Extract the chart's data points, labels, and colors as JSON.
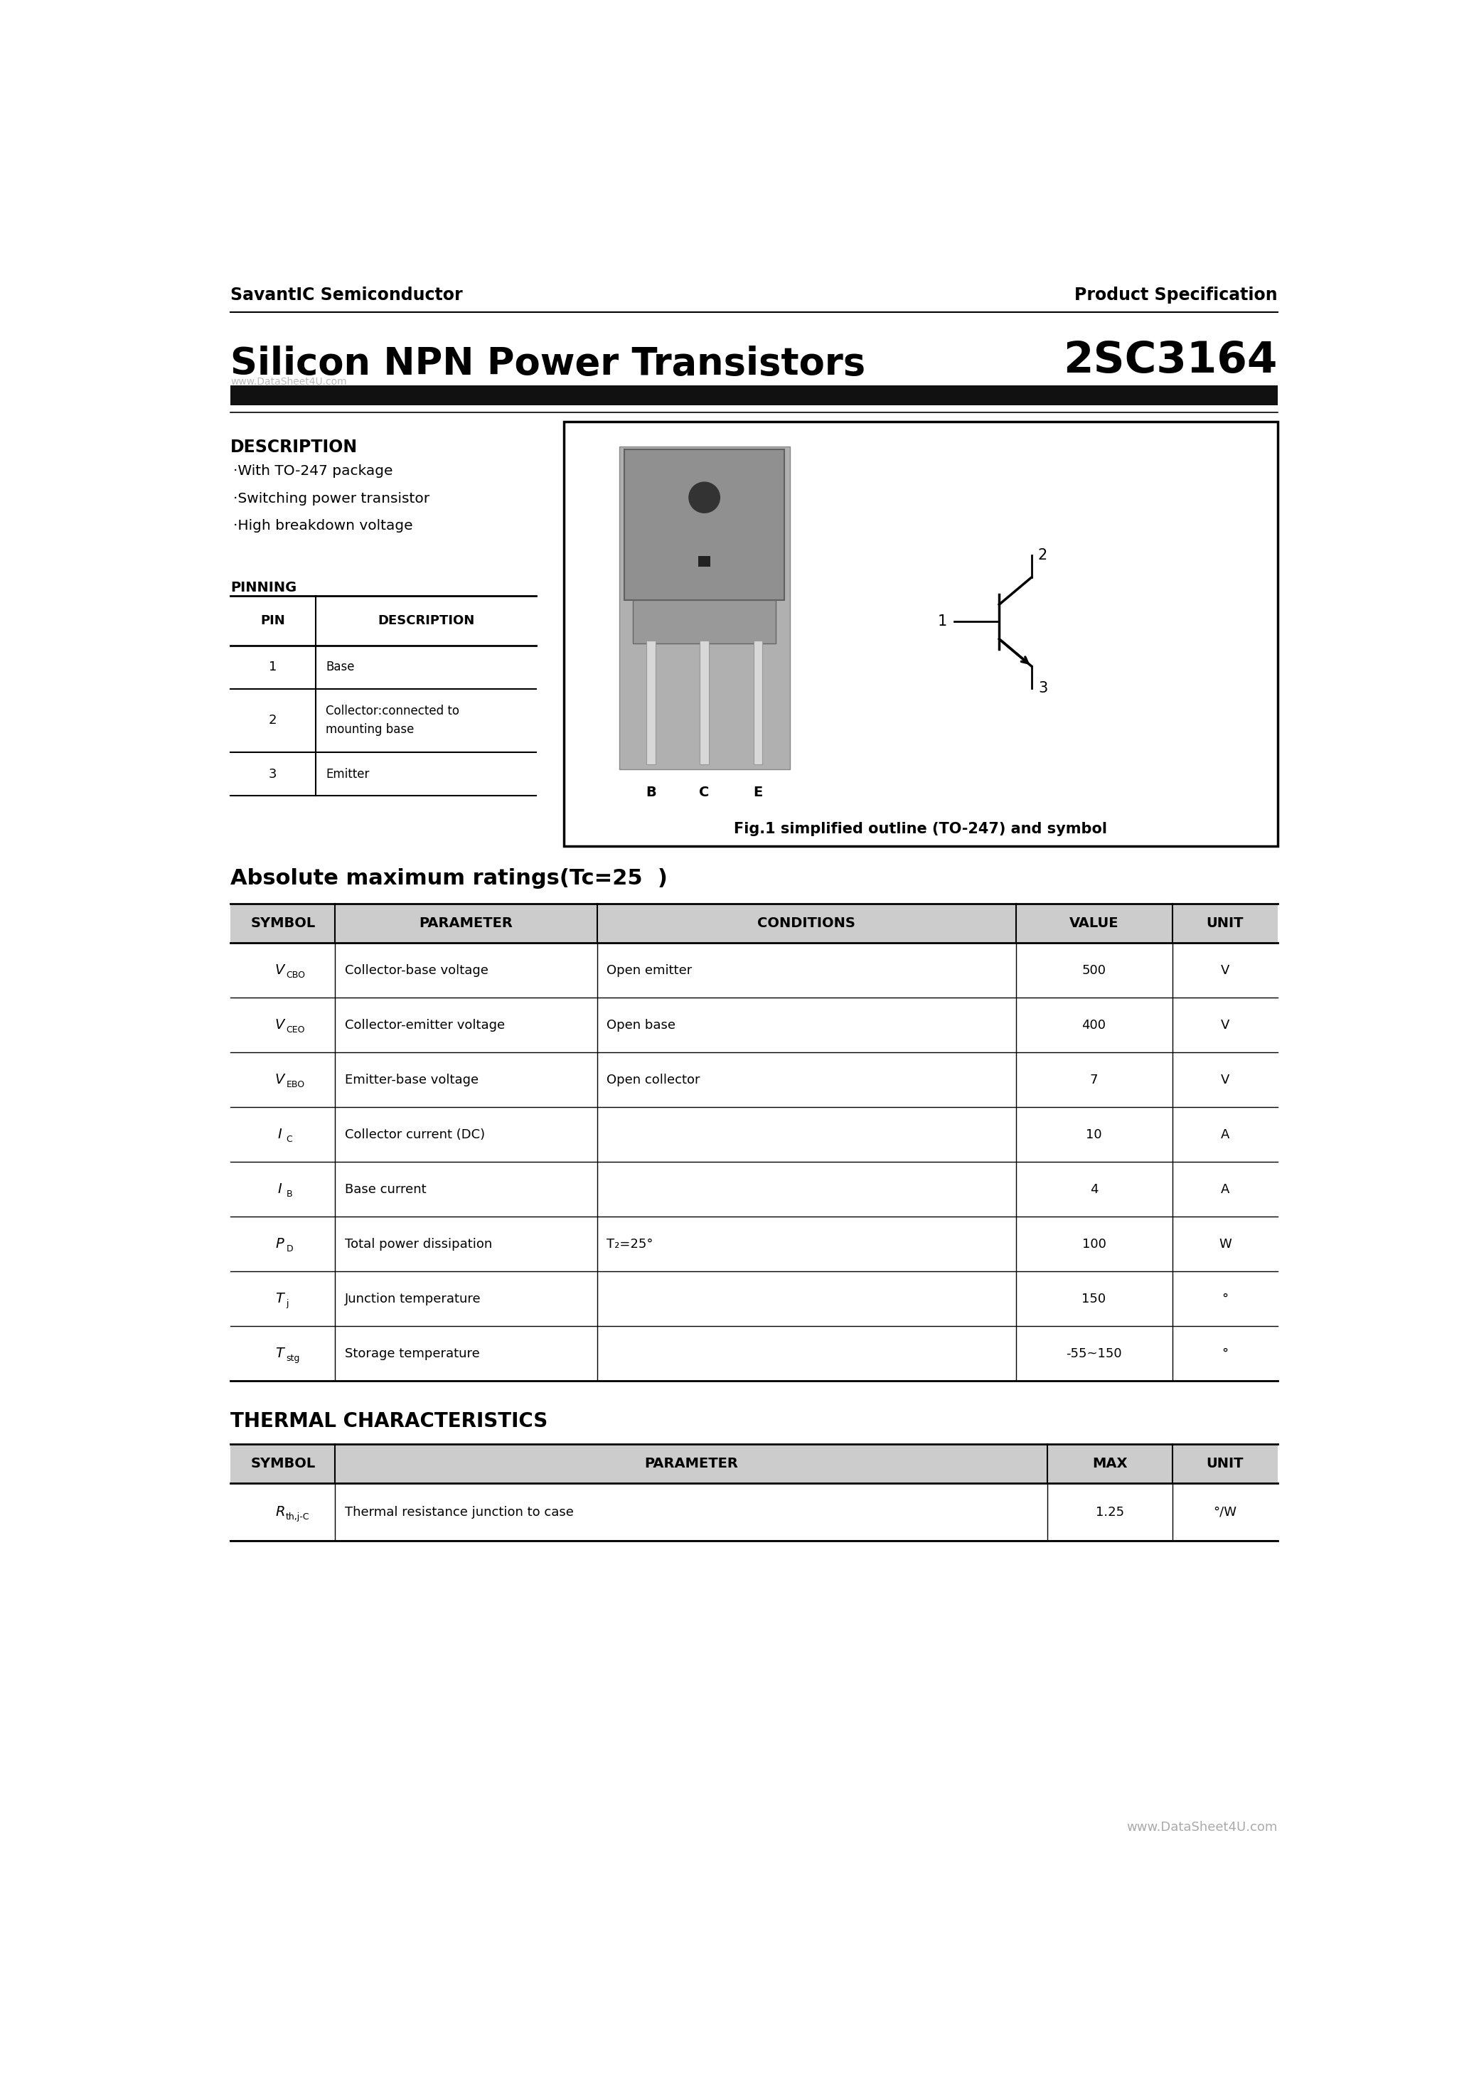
{
  "page_title_left": "SavantIC Semiconductor",
  "page_title_right": "Product Specification",
  "product_title": "Silicon NPN Power Transistors",
  "product_number": "2SC3164",
  "watermark": "www.DataSheet4U.com",
  "description_title": "DESCRIPTION",
  "description_items": [
    "·With TO-247 package",
    "·Switching power transistor",
    "·High breakdown voltage"
  ],
  "fig_caption": "Fig.1 simplified outline (TO-247) and symbol",
  "pinning_title": "PINNING",
  "pinning_headers": [
    "PIN",
    "DESCRIPTION"
  ],
  "pinning_rows": [
    [
      "1",
      "Base"
    ],
    [
      "2",
      "Collector:connected to\nmounting base"
    ],
    [
      "3",
      "Emitter"
    ]
  ],
  "abs_max_title": "Absolute maximum ratings(Tc=25  )",
  "abs_max_headers": [
    "SYMBOL",
    "PARAMETER",
    "CONDITIONS",
    "VALUE",
    "UNIT"
  ],
  "abs_max_rows": [
    [
      "CBO",
      "Collector-base voltage",
      "Open emitter",
      "500",
      "V"
    ],
    [
      "CEO",
      "Collector-emitter voltage",
      "Open base",
      "400",
      "V"
    ],
    [
      "EBO",
      "Emitter-base voltage",
      "Open collector",
      "7",
      "V"
    ],
    [
      "C",
      "Collector current (DC)",
      "",
      "10",
      "A"
    ],
    [
      "B",
      "Base current",
      "",
      "4",
      "A"
    ],
    [
      "D",
      "Total power dissipation",
      "T₂=25°",
      "100",
      "W"
    ],
    [
      "j",
      "Junction temperature",
      "",
      "150",
      "°"
    ],
    [
      "stg",
      "Storage temperature",
      "",
      "-55~150",
      "°"
    ]
  ],
  "abs_max_symbols_main": [
    "V",
    "V",
    "V",
    "I",
    "I",
    "P",
    "T",
    "T"
  ],
  "abs_max_symbols_sub": [
    "CBO",
    "CEO",
    "EBO",
    "C",
    "B",
    "D",
    "j",
    "stg"
  ],
  "thermal_title": "THERMAL CHARACTERISTICS",
  "thermal_headers": [
    "SYMBOL",
    "PARAMETER",
    "MAX",
    "UNIT"
  ],
  "thermal_rows": [
    [
      "th,j-C",
      "Thermal resistance junction to case",
      "1.25",
      "°/W"
    ]
  ],
  "footer": "www.DataSheet4U.com",
  "bg_color": "#ffffff",
  "text_color": "#000000",
  "header_bar_color": "#111111",
  "table_line_color": "#000000",
  "table_header_bg": "#cccccc"
}
